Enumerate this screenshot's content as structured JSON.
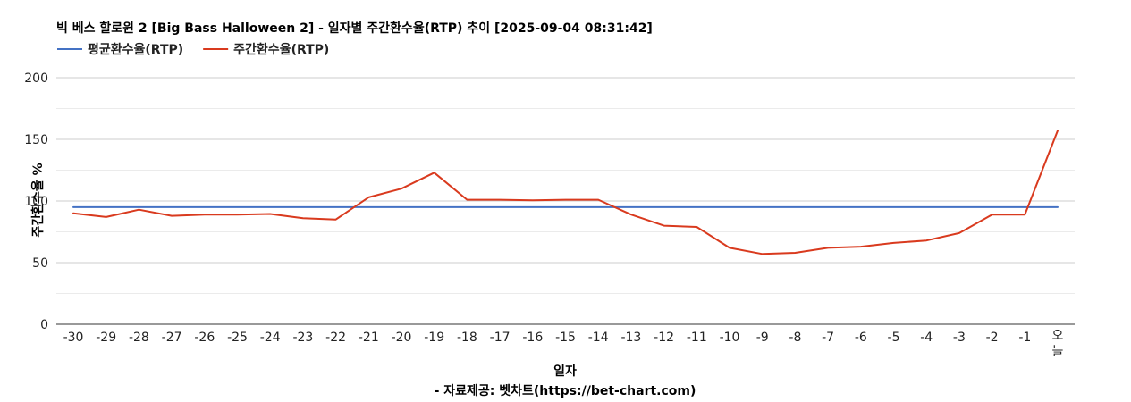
{
  "chart_data": {
    "type": "line",
    "title": "빅 베스 할로윈 2 [Big Bass Halloween 2] - 일자별 주간환수율(RTP) 추이 [2025-09-04 08:31:42]",
    "xlabel": "일자",
    "source": "- 자료제공: 벳차트(https://bet-chart.com)",
    "ylabel": "주간환수율 %",
    "ylim": [
      0,
      200
    ],
    "yticks": [
      0,
      50,
      100,
      150,
      200
    ],
    "grid": true,
    "legend_position": "top-left",
    "categories": [
      "-30",
      "-29",
      "-28",
      "-27",
      "-26",
      "-25",
      "-24",
      "-23",
      "-22",
      "-21",
      "-20",
      "-19",
      "-18",
      "-17",
      "-16",
      "-15",
      "-14",
      "-13",
      "-12",
      "-11",
      "-10",
      "-9",
      "-8",
      "-7",
      "-6",
      "-5",
      "-4",
      "-3",
      "-2",
      "-1",
      "오늘"
    ],
    "series": [
      {
        "name": "평균환수율(RTP)",
        "color": "#4472C4",
        "values": [
          95,
          95,
          95,
          95,
          95,
          95,
          95,
          95,
          95,
          95,
          95,
          95,
          95,
          95,
          95,
          95,
          95,
          95,
          95,
          95,
          95,
          95,
          95,
          95,
          95,
          95,
          95,
          95,
          95,
          95,
          95
        ]
      },
      {
        "name": "주간환수율(RTP)",
        "color": "#D93A1E",
        "values": [
          90,
          87,
          93,
          88,
          89,
          89,
          89.5,
          86,
          85,
          103,
          110,
          123,
          101,
          101,
          100.5,
          101,
          101,
          89,
          80,
          79,
          62,
          57,
          58,
          62,
          63,
          66,
          68,
          74,
          89,
          89,
          157
        ]
      }
    ]
  }
}
